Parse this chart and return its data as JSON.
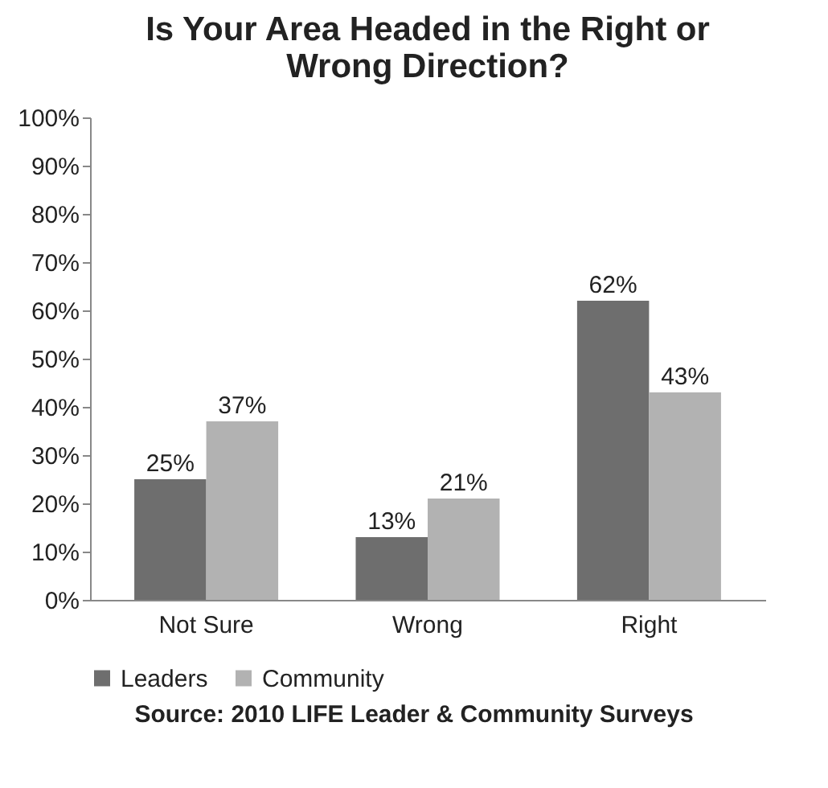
{
  "chart_data": {
    "type": "bar",
    "title": "Is Your Area Headed in the Right or Wrong Direction?",
    "categories": [
      "Not Sure",
      "Wrong",
      "Right"
    ],
    "series": [
      {
        "name": "Leaders",
        "color": "#6e6e6e",
        "values": [
          25,
          13,
          62
        ],
        "value_labels": [
          "25%",
          "13%",
          "62%"
        ]
      },
      {
        "name": "Community",
        "color": "#b2b2b2",
        "values": [
          37,
          21,
          43
        ],
        "value_labels": [
          "37%",
          "21%",
          "43%"
        ]
      }
    ],
    "ylim": [
      0,
      100
    ],
    "yticks": [
      {
        "value": 0,
        "label": "0%"
      },
      {
        "value": 10,
        "label": "10%"
      },
      {
        "value": 20,
        "label": "20%"
      },
      {
        "value": 30,
        "label": "30%"
      },
      {
        "value": 40,
        "label": "40%"
      },
      {
        "value": 50,
        "label": "50%"
      },
      {
        "value": 60,
        "label": "60%"
      },
      {
        "value": 70,
        "label": "70%"
      },
      {
        "value": 80,
        "label": "80%"
      },
      {
        "value": 90,
        "label": "90%"
      },
      {
        "value": 100,
        "label": "100%"
      }
    ],
    "legend": "bottom",
    "annotations": [
      "Source: 2010 LIFE Leader & Community Surveys"
    ]
  }
}
